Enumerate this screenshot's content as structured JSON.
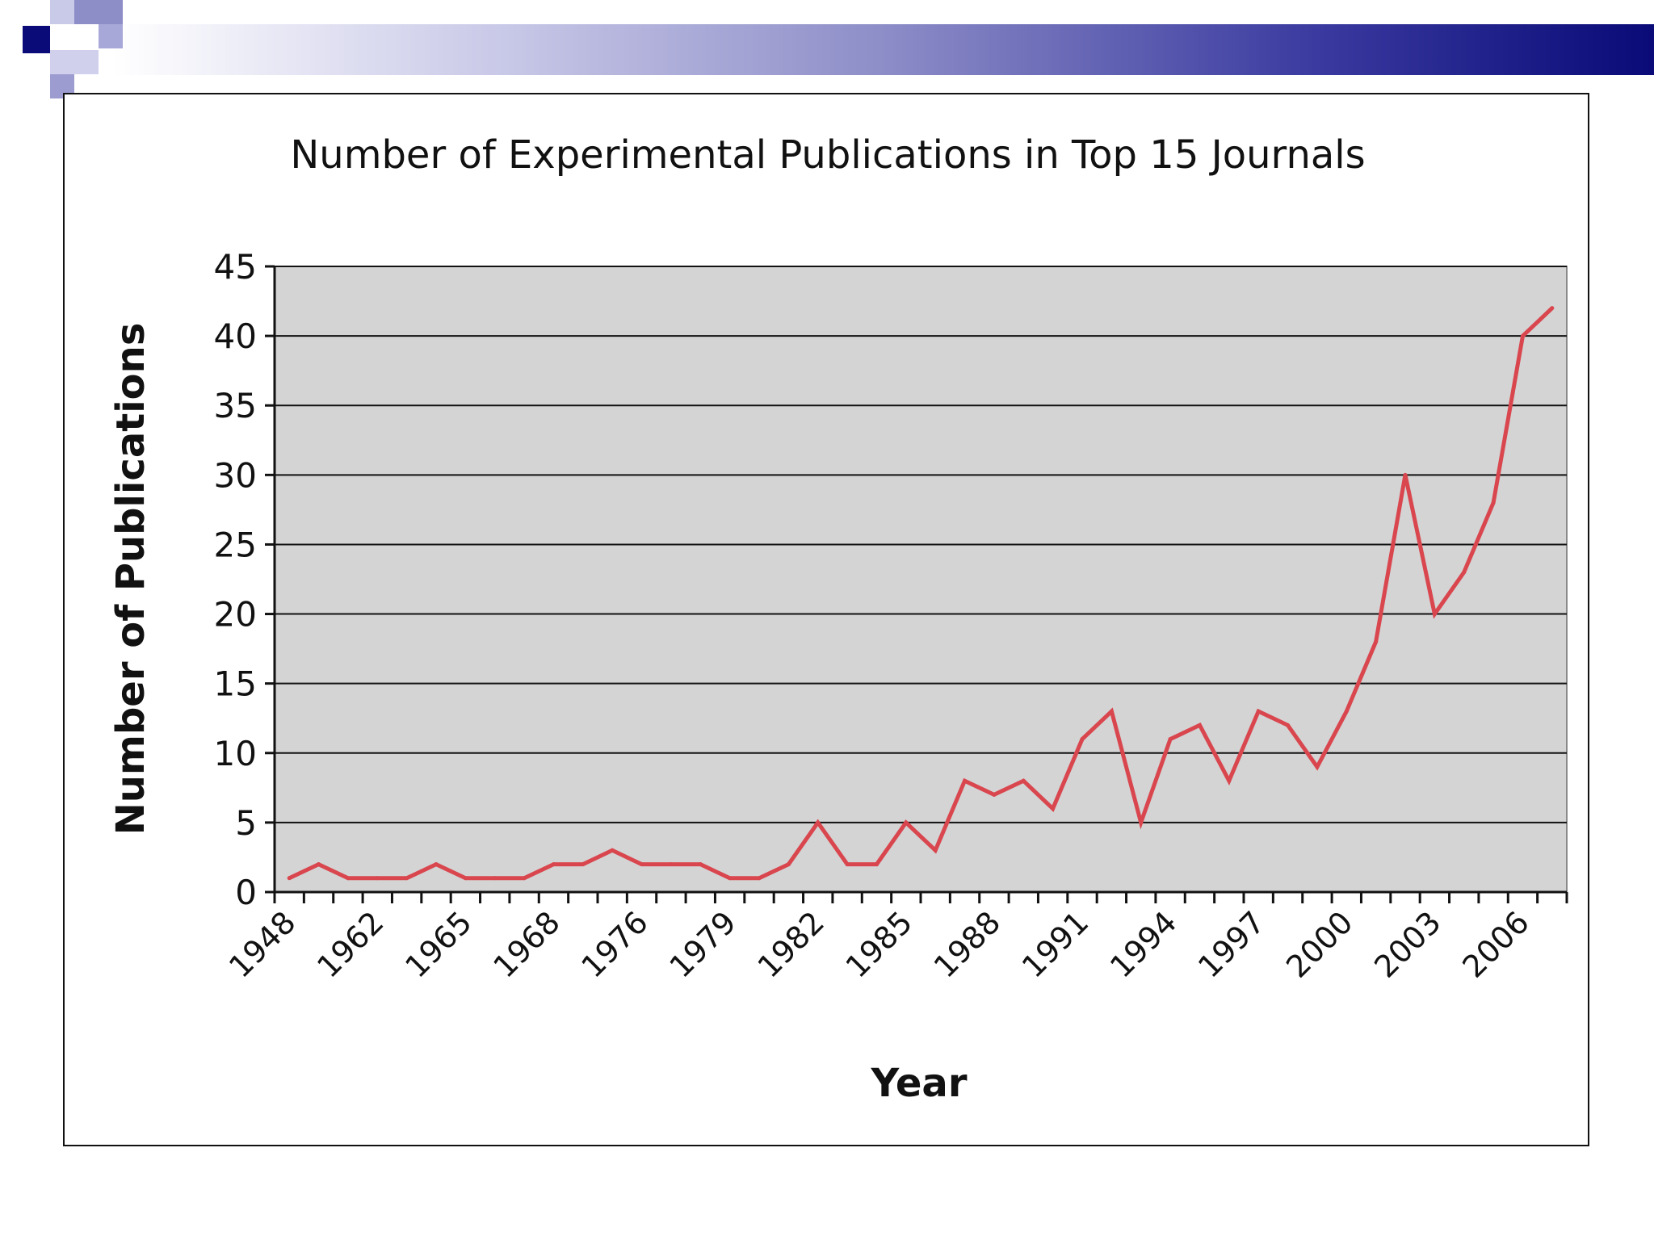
{
  "slide": {
    "accent_color": "#0a0a78"
  },
  "chart_data": {
    "type": "line",
    "title": "Number of Experimental Publications in Top 15 Journals",
    "xlabel": "Year",
    "ylabel": "Number of Publications",
    "ylim": [
      0,
      45
    ],
    "yticks": [
      0,
      5,
      10,
      15,
      20,
      25,
      30,
      35,
      40,
      45
    ],
    "grid": true,
    "plot_background": "#d4d4d4",
    "line_color": "#d9464e",
    "x_tick_labels": [
      "1948",
      "1962",
      "1965",
      "1968",
      "1976",
      "1979",
      "1982",
      "1985",
      "1988",
      "1991",
      "1994",
      "1997",
      "2000",
      "2003",
      "2006"
    ],
    "x_tick_label_every": 3,
    "series": [
      {
        "values": [
          1,
          2,
          1,
          1,
          1,
          2,
          1,
          1,
          1,
          2,
          2,
          3,
          2,
          2,
          2,
          1,
          1,
          2,
          5,
          2,
          2,
          5,
          3,
          8,
          7,
          8,
          6,
          11,
          13,
          5,
          11,
          12,
          8,
          13,
          12,
          9,
          13,
          18,
          30,
          20,
          23,
          28,
          40,
          42
        ]
      }
    ]
  }
}
